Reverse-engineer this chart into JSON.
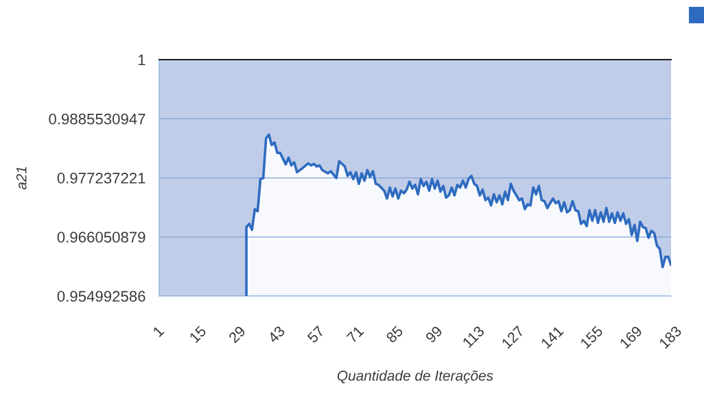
{
  "chart_data": {
    "type": "area",
    "xlabel": "Quantidade de Iterações",
    "ylabel": "a21",
    "log": true,
    "grid": "y",
    "xlim": [
      1,
      183
    ],
    "xticks": [
      1,
      15,
      29,
      43,
      57,
      71,
      85,
      99,
      113,
      127,
      141,
      155,
      169,
      183
    ],
    "ylim": [
      0.954992586,
      1
    ],
    "yticks": [
      0.954992586,
      0.966050879,
      0.977237221,
      0.9885530947,
      1
    ],
    "x": [
      32,
      33,
      34,
      35,
      36,
      37,
      38,
      39,
      40,
      41,
      42,
      43,
      44,
      46,
      47,
      48,
      49,
      50,
      52,
      54,
      55,
      56,
      57,
      58,
      59,
      61,
      62,
      64,
      65,
      67,
      68,
      69,
      70,
      71,
      72,
      73,
      74,
      75,
      76,
      77,
      78,
      79,
      81,
      82,
      83,
      84,
      85,
      86,
      87,
      88,
      89,
      90,
      91,
      92,
      93,
      94,
      95,
      96,
      97,
      98,
      99,
      100,
      101,
      102,
      103,
      104,
      105,
      106,
      107,
      108,
      109,
      110,
      111,
      112,
      113,
      114,
      115,
      116,
      117,
      118,
      119,
      120,
      121,
      122,
      123,
      124,
      125,
      126,
      127,
      128,
      129,
      130,
      131,
      132,
      133,
      134,
      135,
      136,
      137,
      138,
      139,
      141,
      142,
      143,
      144,
      145,
      146,
      147,
      148,
      149,
      150,
      151,
      152,
      153,
      154,
      155,
      156,
      157,
      158,
      159,
      160,
      161,
      162,
      163,
      164,
      165,
      166,
      167,
      168,
      169,
      170,
      171,
      172,
      173,
      174,
      175,
      176,
      177,
      178,
      179,
      180,
      181,
      182,
      183
    ],
    "series": [
      {
        "color": "#2e6bc0",
        "values": [
          0.9679,
          0.9685,
          0.9674,
          0.9713,
          0.9709,
          0.977,
          0.9772,
          0.9848,
          0.9855,
          0.9835,
          0.984,
          0.982,
          0.982,
          0.9798,
          0.9811,
          0.9796,
          0.9802,
          0.9783,
          0.9791,
          0.98,
          0.9796,
          0.9799,
          0.9794,
          0.9796,
          0.9787,
          0.9781,
          0.9785,
          0.9772,
          0.9804,
          0.9794,
          0.9776,
          0.9783,
          0.977,
          0.9783,
          0.9761,
          0.9781,
          0.9767,
          0.9787,
          0.9774,
          0.9785,
          0.9761,
          0.9759,
          0.9748,
          0.9733,
          0.9754,
          0.9737,
          0.9752,
          0.9733,
          0.9748,
          0.9743,
          0.975,
          0.9765,
          0.9752,
          0.9759,
          0.9741,
          0.977,
          0.9757,
          0.9765,
          0.9748,
          0.977,
          0.9752,
          0.9767,
          0.9746,
          0.9757,
          0.9735,
          0.9739,
          0.9754,
          0.9739,
          0.9759,
          0.9754,
          0.9767,
          0.9754,
          0.977,
          0.9776,
          0.9761,
          0.9757,
          0.9739,
          0.975,
          0.973,
          0.9735,
          0.972,
          0.9741,
          0.9726,
          0.9739,
          0.9722,
          0.9746,
          0.973,
          0.9761,
          0.9748,
          0.9739,
          0.973,
          0.9733,
          0.9713,
          0.9722,
          0.972,
          0.9754,
          0.9741,
          0.9757,
          0.973,
          0.9728,
          0.9715,
          0.9733,
          0.9724,
          0.9728,
          0.9709,
          0.9726,
          0.9707,
          0.9711,
          0.9728,
          0.9711,
          0.9709,
          0.9685,
          0.9691,
          0.9681,
          0.9711,
          0.9691,
          0.9711,
          0.9687,
          0.9707,
          0.9689,
          0.9715,
          0.9689,
          0.9705,
          0.9687,
          0.9707,
          0.9691,
          0.9705,
          0.9685,
          0.9694,
          0.9664,
          0.9683,
          0.9653,
          0.9689,
          0.9679,
          0.9677,
          0.9659,
          0.9672,
          0.9668,
          0.9644,
          0.9638,
          0.9604,
          0.9623,
          0.9623,
          0.9608
        ]
      }
    ]
  }
}
